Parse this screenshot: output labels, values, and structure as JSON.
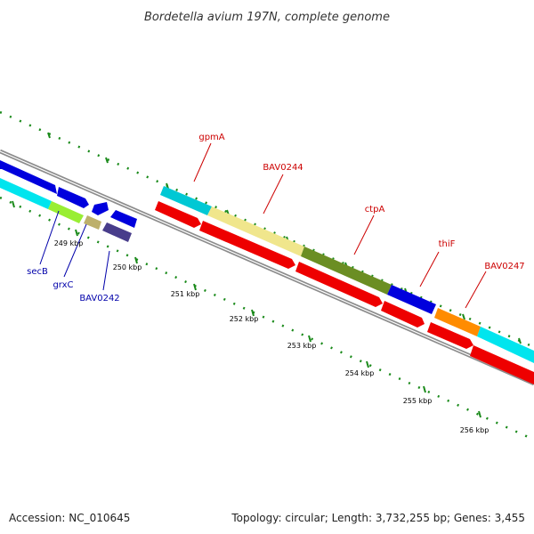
{
  "title": "Bordetella avium 197N, complete genome",
  "footer": {
    "accession": "Accession: NC_010645",
    "summary": "Topology: circular; Length: 3,732,255 bp; Genes: 3,455"
  },
  "colors": {
    "backbone": "#8c8c8c",
    "ticks": "#1a8a1a",
    "gene_label_forward": "#cc0000",
    "gene_label_reverse": "#0000aa"
  },
  "scale_labels": [
    "249 kbp",
    "250 kbp",
    "251 kbp",
    "252 kbp",
    "253 kbp",
    "254 kbp",
    "255 kbp",
    "256 kbp"
  ],
  "gene_labels_upper": [
    "gpmA",
    "BAV0244",
    "ctpA",
    "thiF",
    "BAV0247"
  ],
  "gene_labels_lower": [
    "secB",
    "grxC",
    "BAV0242"
  ]
}
